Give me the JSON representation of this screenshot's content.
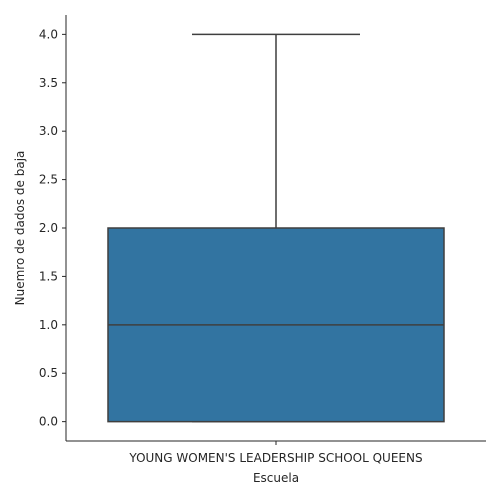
{
  "chart_data": {
    "type": "box",
    "title": "",
    "xlabel": "Escuela",
    "ylabel": "Nuemro de dados de baja",
    "categories": [
      "YOUNG WOMEN'S LEADERSHIP SCHOOL QUEENS"
    ],
    "boxes": [
      {
        "category": "YOUNG WOMEN'S LEADERSHIP SCHOOL QUEENS",
        "min": 0.0,
        "q1": 0.0,
        "median": 1.0,
        "q3": 2.0,
        "max": 4.0
      }
    ],
    "ylim": [
      -0.2,
      4.2
    ],
    "yticks": [
      0.0,
      0.5,
      1.0,
      1.5,
      2.0,
      2.5,
      3.0,
      3.5,
      4.0
    ],
    "ytick_labels": [
      "0.0",
      "0.5",
      "1.0",
      "1.5",
      "2.0",
      "2.5",
      "3.0",
      "3.5",
      "4.0"
    ],
    "grid": false,
    "colors": {
      "box_fill": "#3274a1",
      "box_edge": "#3f3f3f",
      "axis": "#262626",
      "text": "#262626"
    }
  }
}
